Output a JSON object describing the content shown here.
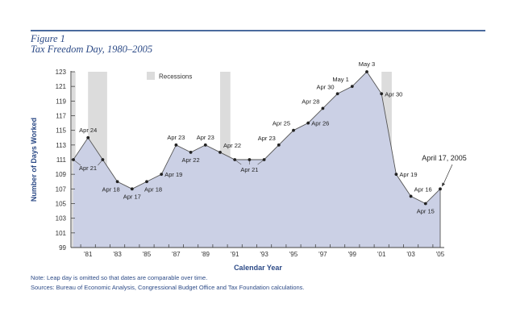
{
  "header": {
    "figure_label": "Figure 1",
    "figure_title": "Tax Freedom Day, 1980–2005"
  },
  "chart_data": {
    "type": "area",
    "title": "Tax Freedom Day, 1980–2005",
    "xlabel": "Calendar Year",
    "ylabel": "Number of Days Worked",
    "xlim": [
      1980,
      2005
    ],
    "ylim": [
      99,
      123
    ],
    "yticks": [
      99,
      101,
      103,
      105,
      107,
      109,
      111,
      113,
      115,
      117,
      119,
      121,
      123
    ],
    "xtick_labels": [
      {
        "year": 1981,
        "label": "'81"
      },
      {
        "year": 1983,
        "label": "'83"
      },
      {
        "year": 1985,
        "label": "'85"
      },
      {
        "year": 1987,
        "label": "'87"
      },
      {
        "year": 1989,
        "label": "'89"
      },
      {
        "year": 1991,
        "label": "'91"
      },
      {
        "year": 1993,
        "label": "'93"
      },
      {
        "year": 1995,
        "label": "'95"
      },
      {
        "year": 1997,
        "label": "'97"
      },
      {
        "year": 1999,
        "label": "'99"
      },
      {
        "year": 2001,
        "label": "'01"
      },
      {
        "year": 2003,
        "label": "'03"
      },
      {
        "year": 2005,
        "label": "'05"
      }
    ],
    "grid": false,
    "legend": {
      "label": "Recessions",
      "position": "top-left"
    },
    "recessions": [
      {
        "start": 1980.0,
        "end": 1980.15
      },
      {
        "start": 1981.0,
        "end": 1982.3
      },
      {
        "start": 1990.0,
        "end": 1990.7
      },
      {
        "start": 2001.0,
        "end": 2001.7
      }
    ],
    "series": [
      {
        "name": "Tax Freedom Day",
        "x": [
          1980,
          1981,
          1982,
          1983,
          1984,
          1985,
          1986,
          1987,
          1988,
          1989,
          1990,
          1991,
          1992,
          1993,
          1994,
          1995,
          1996,
          1997,
          1998,
          1999,
          2000,
          2001,
          2002,
          2003,
          2004,
          2005
        ],
        "values": [
          111,
          114,
          111,
          108,
          107,
          108,
          109,
          113,
          112,
          113,
          112,
          111,
          111,
          111,
          113,
          115,
          116,
          118,
          120,
          121,
          123,
          120,
          109,
          106,
          105,
          107
        ]
      }
    ],
    "point_labels": [
      {
        "year": 1980,
        "text": "Apr 21",
        "pos": "below-right"
      },
      {
        "year": 1981,
        "text": "Apr 24",
        "pos": "above"
      },
      {
        "year": 1983,
        "text": "Apr 18",
        "pos": "below-left"
      },
      {
        "year": 1984,
        "text": "Apr 17",
        "pos": "below"
      },
      {
        "year": 1985,
        "text": "Apr 18",
        "pos": "below-right"
      },
      {
        "year": 1986,
        "text": "Apr 19",
        "pos": "right"
      },
      {
        "year": 1987,
        "text": "Apr 23",
        "pos": "above"
      },
      {
        "year": 1988,
        "text": "Apr 22",
        "pos": "below"
      },
      {
        "year": 1989,
        "text": "Apr 23",
        "pos": "above"
      },
      {
        "year": 1990,
        "text": "Apr 22",
        "pos": "above-right"
      },
      {
        "year": 1992,
        "text": "Apr 21",
        "pos": "below"
      },
      {
        "year": 1994,
        "text": "Apr 23",
        "pos": "above-left"
      },
      {
        "year": 1995,
        "text": "Apr 25",
        "pos": "above-left"
      },
      {
        "year": 1996,
        "text": "Apr 26",
        "pos": "right"
      },
      {
        "year": 1997,
        "text": "Apr 28",
        "pos": "above-left"
      },
      {
        "year": 1998,
        "text": "Apr 30",
        "pos": "above-left"
      },
      {
        "year": 1999,
        "text": "May 1",
        "pos": "above-left"
      },
      {
        "year": 2000,
        "text": "May 3",
        "pos": "above"
      },
      {
        "year": 2001,
        "text": "Apr 30",
        "pos": "right"
      },
      {
        "year": 2002,
        "text": "Apr 19",
        "pos": "right"
      },
      {
        "year": 2003,
        "text": "Apr 16",
        "pos": "above-right"
      },
      {
        "year": 2004,
        "text": "Apr 15",
        "pos": "below"
      }
    ],
    "annotation": {
      "year": 2005,
      "text": "April 17, 2005"
    },
    "colors": {
      "fill": "#cbd0e5",
      "line": "#555555",
      "recession": "#dcdcdc",
      "axis_text": "#333333",
      "label_blue": "#2d4b87"
    }
  },
  "footer": {
    "note": "Note: Leap day is omitted so that dates are comparable over time.",
    "sources": "Sources: Bureau of Economic Analysis, Congressional Budget Office and Tax Foundation calculations."
  }
}
